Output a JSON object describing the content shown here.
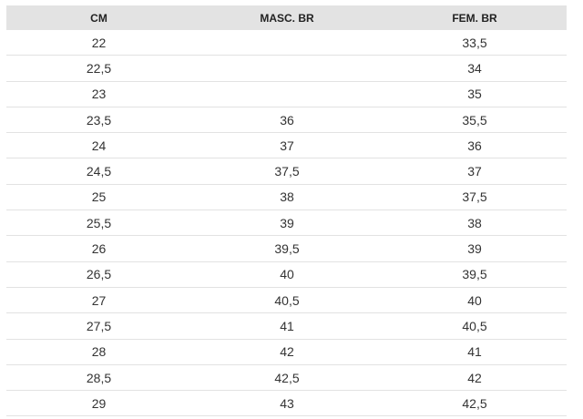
{
  "table": {
    "header": [
      "CM",
      "MASC. BR",
      "FEM. BR"
    ],
    "rows": [
      [
        "22",
        null,
        "33,5"
      ],
      [
        "22,5",
        null,
        "34"
      ],
      [
        "23",
        null,
        "35"
      ],
      [
        "23,5",
        "36",
        "35,5"
      ],
      [
        "24",
        "37",
        "36"
      ],
      [
        "24,5",
        "37,5",
        "37"
      ],
      [
        "25",
        "38",
        "37,5"
      ],
      [
        "25,5",
        "39",
        "38"
      ],
      [
        "26",
        "39,5",
        "39"
      ],
      [
        "26,5",
        "40",
        "39,5"
      ],
      [
        "27",
        "40,5",
        "40"
      ],
      [
        "27,5",
        "41",
        "40,5"
      ],
      [
        "28",
        "42",
        "41"
      ],
      [
        "28,5",
        "42,5",
        "42"
      ],
      [
        "29",
        "43",
        "42,5"
      ]
    ]
  }
}
